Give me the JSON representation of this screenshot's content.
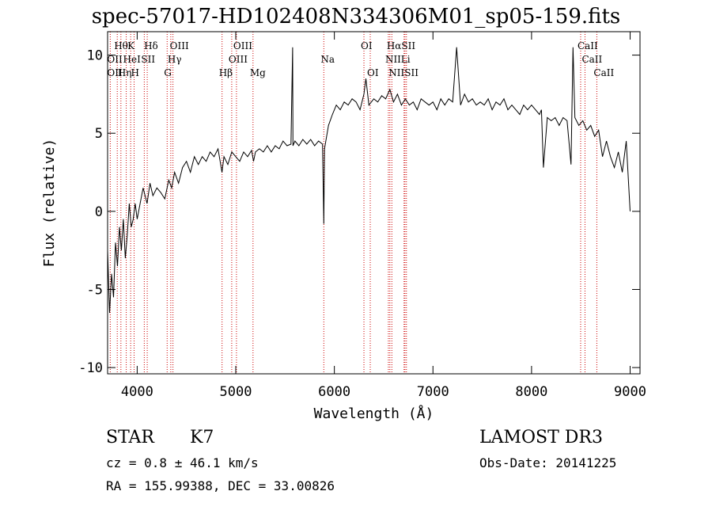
{
  "chart_data": {
    "type": "line",
    "title": "spec-57017-HD102408N334306M01_sp05-159.fits",
    "xlabel": "Wavelength (Å)",
    "ylabel": "Flux (relative)",
    "xlim": [
      3700,
      9100
    ],
    "ylim": [
      -10.4,
      11.5
    ],
    "xticks": [
      4000,
      5000,
      6000,
      7000,
      8000,
      9000
    ],
    "yticks": [
      -10,
      -5,
      0,
      5,
      10
    ],
    "grid": false,
    "series": [
      {
        "name": "spectrum",
        "x": [
          3700,
          3720,
          3740,
          3760,
          3780,
          3800,
          3820,
          3840,
          3860,
          3880,
          3900,
          3920,
          3940,
          3960,
          3980,
          4000,
          4030,
          4060,
          4100,
          4130,
          4160,
          4200,
          4240,
          4280,
          4320,
          4350,
          4380,
          4420,
          4460,
          4500,
          4540,
          4580,
          4620,
          4660,
          4700,
          4740,
          4780,
          4820,
          4860,
          4880,
          4920,
          4960,
          5000,
          5040,
          5080,
          5120,
          5160,
          5180,
          5200,
          5240,
          5280,
          5320,
          5360,
          5400,
          5440,
          5480,
          5520,
          5560,
          5577,
          5580,
          5600,
          5640,
          5680,
          5720,
          5760,
          5800,
          5840,
          5880,
          5893,
          5900,
          5940,
          5980,
          6020,
          6060,
          6100,
          6140,
          6180,
          6220,
          6260,
          6300,
          6320,
          6350,
          6400,
          6440,
          6480,
          6520,
          6563,
          6600,
          6640,
          6680,
          6720,
          6760,
          6800,
          6840,
          6880,
          6920,
          6960,
          7000,
          7040,
          7080,
          7120,
          7160,
          7200,
          7240,
          7280,
          7320,
          7360,
          7400,
          7440,
          7480,
          7520,
          7560,
          7600,
          7640,
          7680,
          7720,
          7760,
          7800,
          7840,
          7880,
          7920,
          7960,
          8000,
          8040,
          8080,
          8100,
          8120,
          8160,
          8200,
          8240,
          8280,
          8320,
          8360,
          8400,
          8420,
          8440,
          8480,
          8520,
          8560,
          8600,
          8640,
          8680,
          8720,
          8760,
          8800,
          8840,
          8880,
          8920,
          8960,
          9000
        ],
        "y": [
          -2.5,
          -6.5,
          -4.0,
          -5.5,
          -2.0,
          -3.5,
          -1.0,
          -2.5,
          -0.5,
          -3.0,
          -1.5,
          0.5,
          -1.0,
          -0.5,
          0.5,
          -0.5,
          0.5,
          1.5,
          0.5,
          1.8,
          1.0,
          1.5,
          1.2,
          0.8,
          2.0,
          1.5,
          2.5,
          1.8,
          2.8,
          3.2,
          2.5,
          3.5,
          3.0,
          3.5,
          3.2,
          3.8,
          3.5,
          4.0,
          2.5,
          3.5,
          3.0,
          3.8,
          3.5,
          3.2,
          3.8,
          3.5,
          3.9,
          3.2,
          3.8,
          4.0,
          3.8,
          4.2,
          3.8,
          4.2,
          4.0,
          4.5,
          4.2,
          4.3,
          10.5,
          4.2,
          4.5,
          4.2,
          4.6,
          4.3,
          4.6,
          4.2,
          4.5,
          4.3,
          -0.8,
          4.0,
          5.5,
          6.2,
          6.8,
          6.5,
          7.0,
          6.8,
          7.2,
          7.0,
          6.5,
          7.5,
          8.5,
          6.8,
          7.2,
          7.0,
          7.4,
          7.2,
          7.8,
          7.0,
          7.5,
          6.8,
          7.2,
          6.8,
          7.0,
          6.5,
          7.2,
          7.0,
          6.8,
          7.0,
          6.5,
          7.2,
          6.8,
          7.2,
          7.0,
          10.5,
          6.8,
          7.5,
          7.0,
          7.2,
          6.8,
          7.0,
          6.8,
          7.2,
          6.5,
          7.0,
          6.8,
          7.2,
          6.5,
          6.8,
          6.5,
          6.2,
          6.8,
          6.5,
          6.8,
          6.5,
          6.2,
          6.5,
          2.8,
          6.0,
          5.8,
          6.0,
          5.5,
          6.0,
          5.8,
          3.0,
          10.5,
          6.0,
          5.5,
          5.8,
          5.2,
          5.5,
          4.8,
          5.2,
          3.5,
          4.5,
          3.5,
          2.8,
          3.8,
          2.5,
          4.5,
          0.0
        ]
      }
    ],
    "lines": [
      {
        "label": "Hθ",
        "x": 3798
      },
      {
        "label": "OII",
        "x": 3727
      },
      {
        "label": "Hη",
        "x": 3835
      },
      {
        "label": "HeI",
        "x": 3889
      },
      {
        "label": "K",
        "x": 3934
      },
      {
        "label": "H",
        "x": 3969
      },
      {
        "label": "SII",
        "x": 4072
      },
      {
        "label": "Hδ",
        "x": 4102
      },
      {
        "label": "G",
        "x": 4304
      },
      {
        "label": "Hγ",
        "x": 4341
      },
      {
        "label": "OIII",
        "x": 4363
      },
      {
        "label": "Hβ",
        "x": 4861
      },
      {
        "label": "OIII",
        "x": 4959
      },
      {
        "label": "OIII",
        "x": 5007
      },
      {
        "label": "Mg",
        "x": 5175
      },
      {
        "label": "Na",
        "x": 5893
      },
      {
        "label": "OI",
        "x": 6300
      },
      {
        "label": "OI",
        "x": 6364
      },
      {
        "label": "NII",
        "x": 6548
      },
      {
        "label": "Hα",
        "x": 6563
      },
      {
        "label": "NII",
        "x": 6583
      },
      {
        "label": "Li",
        "x": 6707
      },
      {
        "label": "SII",
        "x": 6716
      },
      {
        "label": "SII",
        "x": 6731
      },
      {
        "label": "CaII",
        "x": 8498
      },
      {
        "label": "CaII",
        "x": 8542
      },
      {
        "label": "CaII",
        "x": 8662
      }
    ]
  },
  "footer": {
    "object_class": "STAR",
    "subclass": "K7",
    "cz": "cz = 0.8 ± 46.1 km/s",
    "coords": "RA = 155.99388, DEC =  33.00826",
    "survey": "LAMOST DR3",
    "obs_date": "Obs-Date: 20141225"
  },
  "line_labels_display": [
    {
      "text": "Hθ",
      "row": 0,
      "x": 3798
    },
    {
      "text": "K",
      "row": 0,
      "x": 3934
    },
    {
      "text": "Hδ",
      "row": 0,
      "x": 4102
    },
    {
      "text": "OIII",
      "row": 0,
      "x": 4363
    },
    {
      "text": "OIII",
      "row": 0,
      "x": 5007
    },
    {
      "text": "OI",
      "row": 0,
      "x": 6300
    },
    {
      "text": "HαSII",
      "row": 0,
      "x": 6563
    },
    {
      "text": "CaII",
      "row": 0,
      "x": 8498
    },
    {
      "text": "OII",
      "row": 1,
      "x": 3727
    },
    {
      "text": "HeI",
      "row": 1,
      "x": 3889
    },
    {
      "text": "SII",
      "row": 1,
      "x": 4072
    },
    {
      "text": "Hγ",
      "row": 1,
      "x": 4341
    },
    {
      "text": "OIII",
      "row": 1,
      "x": 4959
    },
    {
      "text": "Na",
      "row": 1,
      "x": 5893
    },
    {
      "text": "NII",
      "row": 1,
      "x": 6548
    },
    {
      "text": "Li",
      "row": 1,
      "x": 6707
    },
    {
      "text": "CaII",
      "row": 1,
      "x": 8542
    },
    {
      "text": "OII",
      "row": 2,
      "x": 3727
    },
    {
      "text": "Hη",
      "row": 2,
      "x": 3835
    },
    {
      "text": "H",
      "row": 2,
      "x": 3969
    },
    {
      "text": "G",
      "row": 2,
      "x": 4304
    },
    {
      "text": "Hβ",
      "row": 2,
      "x": 4861
    },
    {
      "text": "Mg",
      "row": 2,
      "x": 5175
    },
    {
      "text": "OI",
      "row": 2,
      "x": 6364
    },
    {
      "text": "NIISII",
      "row": 2,
      "x": 6583
    },
    {
      "text": "CaII",
      "row": 2,
      "x": 8662
    }
  ],
  "colors": {
    "spectrum": "#000000",
    "line_markers": "#cc0000",
    "text": "#000000"
  }
}
